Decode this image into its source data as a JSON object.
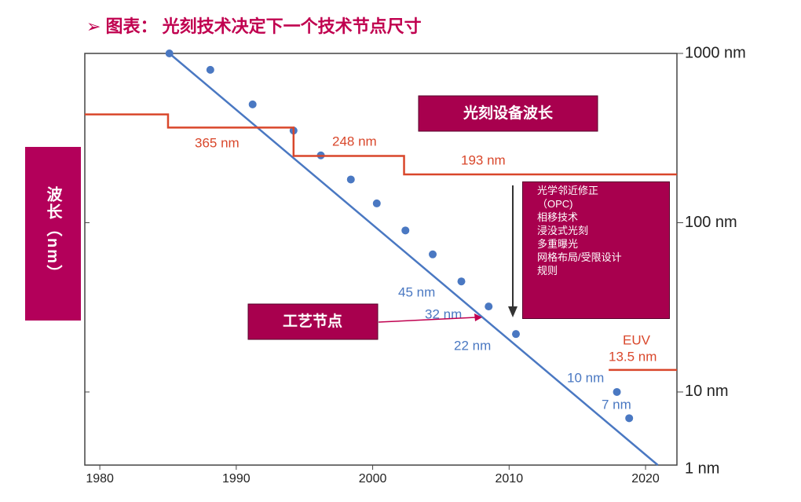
{
  "chart_data": {
    "type": "line",
    "title": "➢ 图表： 光刻技术决定下一个技术节点尺寸",
    "y_label": "波长（nm）",
    "log_y": true,
    "xlim": [
      1978.9,
      2022.3
    ],
    "xticks": [
      1980,
      1990,
      2000,
      2010,
      2020
    ],
    "ylim": [
      3.7,
      1000
    ],
    "yticks": [
      {
        "value": 1000,
        "label": "1000 nm"
      },
      {
        "value": 100,
        "label": "100 nm"
      },
      {
        "value": 10,
        "label": "10 nm"
      }
    ],
    "y_bottom_label": "1 nm",
    "series": [
      {
        "kind": "points",
        "color": "#4a78c2",
        "x": [
          1985.1,
          1988.1,
          1991.2,
          1994.2,
          1996.2,
          1998.4,
          2000.3,
          2002.4,
          2004.4,
          2006.5,
          2008.5,
          2010.5,
          2017.9,
          2018.8
        ],
        "values": [
          1000,
          800,
          500,
          350,
          250,
          180,
          130,
          90,
          65,
          45,
          32,
          22,
          10,
          7
        ]
      },
      {
        "kind": "line",
        "color": "#4a78c2",
        "x": [
          1985.1,
          2020.9
        ],
        "values": [
          1000,
          3.7
        ]
      },
      {
        "kind": "line",
        "color": "#d9472b",
        "x": [
          1978.9,
          1985,
          1985,
          1994.2,
          1994.2,
          2002.3,
          2002.3,
          2022.3
        ],
        "values": [
          436,
          436,
          365,
          365,
          248,
          248,
          193,
          193
        ]
      },
      {
        "kind": "line",
        "color": "#d9472b",
        "x": [
          2017.3,
          2022.3
        ],
        "values": [
          13.5,
          13.5
        ]
      }
    ],
    "annotations": [
      "365 nm",
      "248 nm",
      "193 nm",
      "45 nm",
      "32 nm",
      "22 nm",
      "10 nm",
      "7 nm",
      "EUV",
      "13.5 nm",
      "光刻设备波长",
      "工艺节点"
    ],
    "tech_box": [
      "光学邻近修正",
      "（OPC)",
      "相移技术",
      "浸没式光刻",
      "多重曝光",
      "网格布局/受限设计",
      "规则"
    ]
  }
}
